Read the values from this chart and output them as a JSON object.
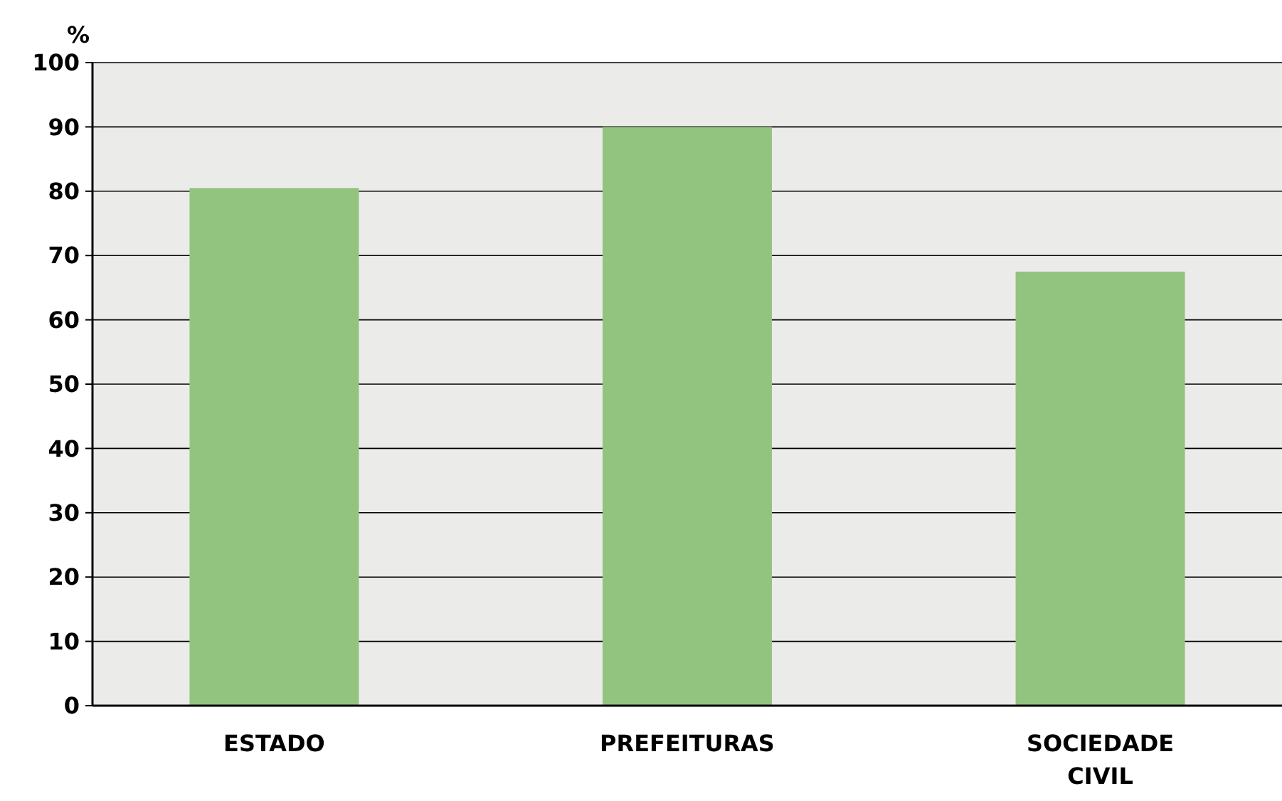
{
  "chart_data": {
    "type": "bar",
    "ylabel": "%",
    "categories": [
      "ESTADO",
      "PREFEITURAS",
      "SOCIEDADE CIVIL"
    ],
    "values": [
      80.5,
      90,
      67.5
    ],
    "color": "#93c47f",
    "ylim": [
      0,
      100
    ],
    "yticks": [
      0,
      10,
      20,
      30,
      40,
      50,
      60,
      70,
      80,
      90,
      100
    ],
    "grid": "y"
  }
}
